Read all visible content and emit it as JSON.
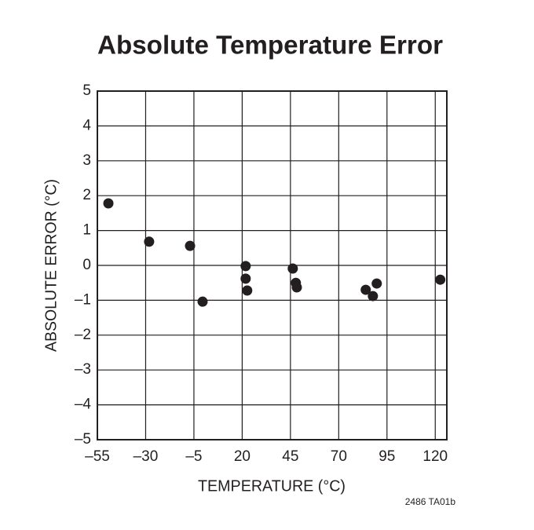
{
  "chart_data": {
    "type": "scatter",
    "title": "Absolute Temperature Error",
    "x_label": "TEMPERATURE (°C)",
    "y_label": "ABSOLUTE ERROR (°C)",
    "note": "2486 TA01b",
    "color": "#231f20",
    "grid": true,
    "xlim": [
      -55,
      126
    ],
    "ylim": [
      -5,
      5
    ],
    "xticks": [
      {
        "value": -55,
        "label": "–55"
      },
      {
        "value": -30,
        "label": "–30"
      },
      {
        "value": -5,
        "label": "–5"
      },
      20,
      45,
      70,
      95,
      120
    ],
    "yticks": [
      {
        "value": -5,
        "label": "–5"
      },
      {
        "value": -4,
        "label": "–4"
      },
      {
        "value": -3,
        "label": "–3"
      },
      {
        "value": -2,
        "label": "–2"
      },
      {
        "value": -1,
        "label": "–1"
      },
      0,
      1,
      2,
      3,
      4,
      5
    ],
    "x": [
      -49.3,
      -28.2,
      -7,
      -0.5,
      21.8,
      21.8,
      22.6,
      46.2,
      47.8,
      48.3,
      84,
      87.7,
      89.7,
      122.6
    ],
    "values": [
      1.78,
      0.68,
      0.56,
      -1.04,
      -0.02,
      -0.38,
      -0.72,
      -0.09,
      -0.5,
      -0.63,
      -0.7,
      -0.88,
      -0.52,
      -0.41
    ]
  }
}
